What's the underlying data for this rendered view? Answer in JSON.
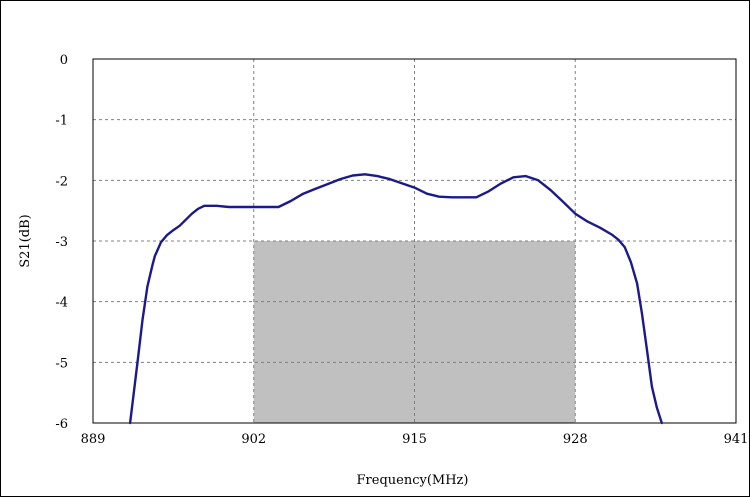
{
  "chart_data": {
    "type": "line",
    "title": "",
    "xlabel": "Frequency(MHz)",
    "ylabel": "S21(dB)",
    "xlim": [
      889,
      941
    ],
    "ylim": [
      -6,
      0
    ],
    "xticks": [
      889,
      902,
      915,
      928,
      941
    ],
    "yticks": [
      0,
      -1,
      -2,
      -3,
      -4,
      -5,
      -6
    ],
    "grid": true,
    "grid_style": "dashed",
    "legend": "none",
    "colors": {
      "line": "#1a1a8c",
      "band": "#c0c0c0",
      "grid": "#808080"
    },
    "highlight_band": {
      "x": [
        902,
        928
      ],
      "y": [
        -6,
        -3
      ]
    },
    "series": [
      {
        "x": [
          892.0,
          892.6,
          893.0,
          893.4,
          893.8,
          894.0,
          894.5,
          895.0,
          895.5,
          896.0,
          896.5,
          897.0,
          897.5,
          898.0,
          899.0,
          900.0,
          901.0,
          902.0,
          903.0,
          904.0,
          905.0,
          906.0,
          907.0,
          908.0,
          909.0,
          910.0,
          911.0,
          912.0,
          913.0,
          914.0,
          915.0,
          916.0,
          917.0,
          918.0,
          919.0,
          920.0,
          921.0,
          922.0,
          923.0,
          924.0,
          925.0,
          926.0,
          927.0,
          928.0,
          929.0,
          930.0,
          931.0,
          931.5,
          932.0,
          932.5,
          933.0,
          933.4,
          933.8,
          934.2,
          934.6,
          935.0
        ],
        "y": [
          -6.0,
          -5.0,
          -4.3,
          -3.75,
          -3.4,
          -3.25,
          -3.02,
          -2.9,
          -2.82,
          -2.75,
          -2.65,
          -2.55,
          -2.47,
          -2.42,
          -2.42,
          -2.44,
          -2.44,
          -2.44,
          -2.44,
          -2.44,
          -2.34,
          -2.22,
          -2.14,
          -2.06,
          -1.98,
          -1.92,
          -1.9,
          -1.93,
          -1.98,
          -2.05,
          -2.12,
          -2.22,
          -2.27,
          -2.28,
          -2.28,
          -2.28,
          -2.18,
          -2.05,
          -1.95,
          -1.93,
          -2.0,
          -2.16,
          -2.35,
          -2.55,
          -2.68,
          -2.78,
          -2.9,
          -2.98,
          -3.1,
          -3.35,
          -3.7,
          -4.2,
          -4.8,
          -5.4,
          -5.75,
          -6.0
        ]
      }
    ]
  }
}
